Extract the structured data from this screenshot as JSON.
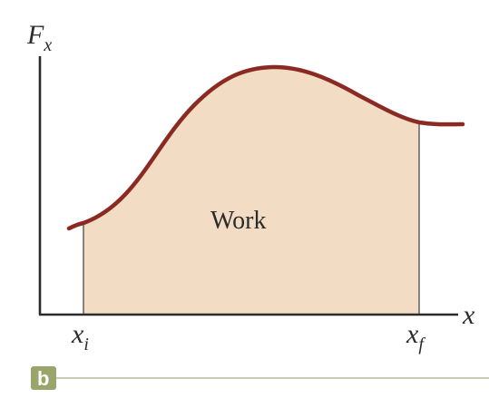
{
  "diagram": {
    "y_axis_label": "F",
    "y_axis_subscript": "x",
    "x_axis_label": "x",
    "x_initial_label": "x",
    "x_initial_subscript": "i",
    "x_final_label": "x",
    "x_final_subscript": "f",
    "area_label": "Work",
    "panel_tag": "b"
  },
  "colors": {
    "curve": "#8b2a22",
    "area_fill": "#f2dcc4",
    "axis": "#2b2b2b",
    "bound_line": "#4a4a4a",
    "panel_tag_bg": "#9aa56b",
    "panel_rule": "#c9cdb4"
  }
}
